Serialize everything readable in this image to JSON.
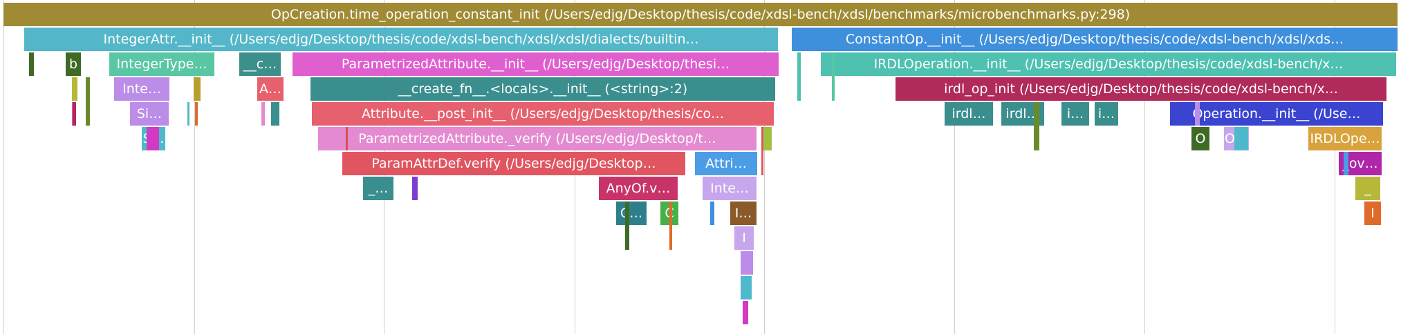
{
  "frames": [
    {
      "label": "OpCreation.time_operation_constant_init (/Users/edjg/Desktop/thesis/code/xdsl-bench/xdsl/benchmarks/microbenchmarks.py:298)",
      "color": "#a08a34"
    },
    {
      "label": "IntegerAttr.__init__ (/Users/edjg/Desktop/thesis/code/xdsl-bench/xdsl/xdsl/dialects/builtin…",
      "color": "#54b7c9"
    },
    {
      "label": "ConstantOp.__init__ (/Users/edjg/Desktop/thesis/code/xdsl-bench/xdsl/xds…",
      "color": "#3e8fdc"
    },
    {
      "label": "b",
      "color": "#3f6a26"
    },
    {
      "label": "IntegerType…",
      "color": "#59c6a4"
    },
    {
      "label": "__c…",
      "color": "#3c8f8a"
    },
    {
      "label": "ParametrizedAttribute.__init__ (/Users/edjg/Desktop/thesi…",
      "color": "#e05fcf"
    },
    {
      "label": "IRDLOperation.__init__ (/Users/edjg/Desktop/thesis/code/xdsl-bench/x…",
      "color": "#4ec1b0"
    },
    {
      "label": "Inte…",
      "color": "#bb8de8"
    },
    {
      "label": "A…",
      "color": "#e6606e"
    },
    {
      "label": "__create_fn__.<locals>.__init__ (<string>:2)",
      "color": "#3a8e8e"
    },
    {
      "label": "irdl_op_init (/Users/edjg/Desktop/thesis/code/xdsl-bench/x…",
      "color": "#b02a5c"
    },
    {
      "label": "Si…",
      "color": "#bb8de8"
    },
    {
      "label": "Attribute.__post_init__ (/Users/edjg/Desktop/thesis/co…",
      "color": "#e6606e"
    },
    {
      "label": "irdl…",
      "color": "#3a8e8e"
    },
    {
      "label": "irdl…",
      "color": "#3a8e8e"
    },
    {
      "label": "i…",
      "color": "#3a8e8e"
    },
    {
      "label": "i…",
      "color": "#3a8e8e"
    },
    {
      "label": "Operation.__init__ (/Use…",
      "color": "#3a44d0"
    },
    {
      "label": "S…",
      "color": "#4fb9cc"
    },
    {
      "label": "ParametrizedAttribute._verify (/Users/edjg/Desktop/t…",
      "color": "#e48ad0"
    },
    {
      "label": "O",
      "color": "#3f6a26"
    },
    {
      "label": "O…",
      "color": "#c8a6ee"
    },
    {
      "label": "IRDLOpe…",
      "color": "#d9a23c"
    },
    {
      "label": "ParamAttrDef.verify (/Users/edjg/Desktop…",
      "color": "#e05560"
    },
    {
      "label": "Attri…",
      "color": "#4b9de6"
    },
    {
      "label": "_ov…",
      "color": "#b026a8"
    },
    {
      "label": "_…",
      "color": "#3a8e8e"
    },
    {
      "label": "AnyOf.v…",
      "color": "#c8336a"
    },
    {
      "label": "Inte…",
      "color": "#c8a6ee"
    },
    {
      "label": "_",
      "color": "#b7b83a"
    },
    {
      "label": "C…",
      "color": "#2e7f8c"
    },
    {
      "label": "C",
      "color": "#47b04a"
    },
    {
      "label": "I…",
      "color": "#8a5a2a"
    },
    {
      "label": "I",
      "color": "#e06a2a"
    },
    {
      "label": "I",
      "color": "#c8a6ee"
    }
  ],
  "slivers": [
    {
      "color": "#3f6a26"
    },
    {
      "color": "#b7b83a"
    },
    {
      "color": "#e05fcf"
    },
    {
      "color": "#6a8a2a"
    },
    {
      "color": "#b7a030"
    },
    {
      "color": "#e06a2a"
    },
    {
      "color": "#54b7c9"
    },
    {
      "color": "#b02a5c"
    },
    {
      "color": "#7b3fd0"
    },
    {
      "color": "#e48ad0"
    },
    {
      "color": "#3a8e8e"
    },
    {
      "color": "#4ec1b0"
    },
    {
      "color": "#6a8a2a"
    },
    {
      "color": "#4b9de6"
    },
    {
      "color": "#d95050"
    },
    {
      "color": "#a0c040"
    },
    {
      "color": "#3f6a26"
    },
    {
      "color": "#e06a2a"
    },
    {
      "color": "#bb8de8"
    },
    {
      "color": "#4fb9cc"
    },
    {
      "color": "#d23ac4"
    },
    {
      "color": "#59c6a4"
    },
    {
      "color": "#3e8fdc"
    },
    {
      "color": "#e05560"
    }
  ]
}
